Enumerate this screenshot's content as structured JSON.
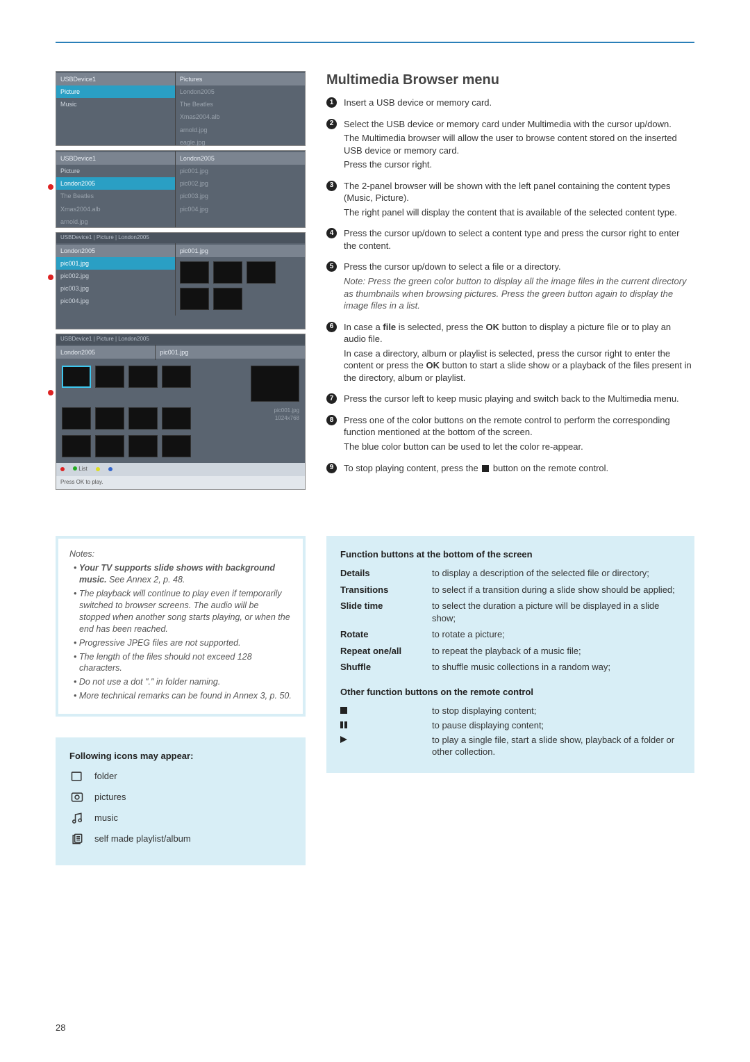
{
  "page_number": "28",
  "title": "Multimedia Browser menu",
  "screenshots": {
    "s1": {
      "left_header": "USBDevice1",
      "left_items": [
        "Picture",
        "Music"
      ],
      "left_selected": 0,
      "right_header": "Pictures",
      "right_items": [
        "London2005",
        "The Beatles",
        "Xmas2004.alb",
        "arnold.jpg",
        "eagle.jpg"
      ]
    },
    "s2": {
      "left_header": "USBDevice1",
      "left_items": [
        "Picture",
        "London2005",
        "The Beatles",
        "Xmas2004.alb",
        "arnold.jpg"
      ],
      "left_selected": 1,
      "right_header": "London2005",
      "right_items": [
        "pic001.jpg",
        "pic002.jpg",
        "pic003.jpg",
        "pic004.jpg"
      ]
    },
    "s3": {
      "crumb": "USBDevice1  |  Picture  |  London2005",
      "left_header": "London2005",
      "left_items": [
        "pic001.jpg",
        "pic002.jpg",
        "pic003.jpg",
        "pic004.jpg"
      ],
      "left_selected": 0,
      "right_header": "pic001.jpg"
    },
    "s4": {
      "crumb": "USBDevice1  |  Picture  |  London2005",
      "left_header": "London2005",
      "right_header": "pic001.jpg",
      "info1": "pic001.jpg",
      "info2": "1024x768",
      "footer_list": "List",
      "footer_press": "Press OK to play."
    }
  },
  "steps": {
    "1": {
      "t": "Insert a USB device or memory card."
    },
    "2": {
      "t": "Select the USB device or memory card under Multimedia with the cursor up/down.",
      "p2": "The Multimedia browser will allow the user to browse content stored on the inserted USB device or memory card.",
      "p3": "Press the cursor right."
    },
    "3": {
      "t": "The 2-panel browser will be shown with the left panel containing the content types (Music, Picture).",
      "p2": "The right panel will display the content that is available of the selected content type."
    },
    "4": {
      "t": "Press the cursor up/down to select a content type and press the cursor right to enter the content."
    },
    "5": {
      "t": "Press the cursor up/down to select a file or a directory.",
      "note": "Note: Press the green color button to display all the image files in the current directory as thumbnails when browsing pictures. Press the green button again to display the image files in a list."
    },
    "6": {
      "pre": "In case a ",
      "bold1": "file",
      "mid": " is selected, press the ",
      "bold2": "OK",
      "post": " button to display a picture file or to play an audio file.",
      "p2a": "In case a directory, album or playlist is selected, press the cursor right to enter the content or press the ",
      "p2bold": "OK",
      "p2b": " button to start a slide show or a playback of the files present in the directory, album or playlist."
    },
    "7": {
      "t": "Press the cursor left to keep music playing and switch back to the Multimedia menu."
    },
    "8": {
      "t": "Press one of the color buttons on the remote control to perform the corresponding function mentioned at the bottom of the screen.",
      "p2": "The blue color button can be used to let the color re-appear."
    },
    "9": {
      "pre": "To stop playing content, press the ",
      "post": " button on the remote control."
    }
  },
  "notes": {
    "head": "Notes:",
    "n1_bold": "Your TV supports slide shows with background music.",
    "n1_rest": " See Annex 2, p. 48.",
    "n2": "The playback will continue to play even if temporarily switched to browser screens. The audio will be stopped when another song starts playing, or when the end has been reached.",
    "n3": "Progressive JPEG files are not supported.",
    "n4": "The length of the files should not exceed 128 characters.",
    "n5": "Do not use a dot \".\" in folder naming.",
    "n6": "More technical remarks can be found in Annex 3, p. 50."
  },
  "icons_panel": {
    "head": "Following icons may appear:",
    "folder": "folder",
    "pictures": "pictures",
    "music": "music",
    "playlist": "self made playlist/album"
  },
  "func_panel": {
    "head1": "Function buttons at the bottom of the screen",
    "rows": [
      {
        "label": "Details",
        "desc": "to display a description of the selected file or directory;"
      },
      {
        "label": "Transitions",
        "desc": "to select if a transition during a slide show should be applied;"
      },
      {
        "label": "Slide time",
        "desc": "to select the duration a picture will be displayed in a slide show;"
      },
      {
        "label": "Rotate",
        "desc": "to rotate a picture;"
      },
      {
        "label": "Repeat one/all",
        "desc": "to repeat the playback of a music file;"
      },
      {
        "label": "Shuffle",
        "desc": "to shuffle music collections in a random way;"
      }
    ],
    "head2": "Other function buttons on the remote control",
    "remote": [
      {
        "icon": "stop",
        "desc": "to stop displaying content;"
      },
      {
        "icon": "pause",
        "desc": "to pause displaying content;"
      },
      {
        "icon": "play",
        "desc": "to play a single file, start a slide show, playback of a folder or other collection."
      }
    ]
  }
}
